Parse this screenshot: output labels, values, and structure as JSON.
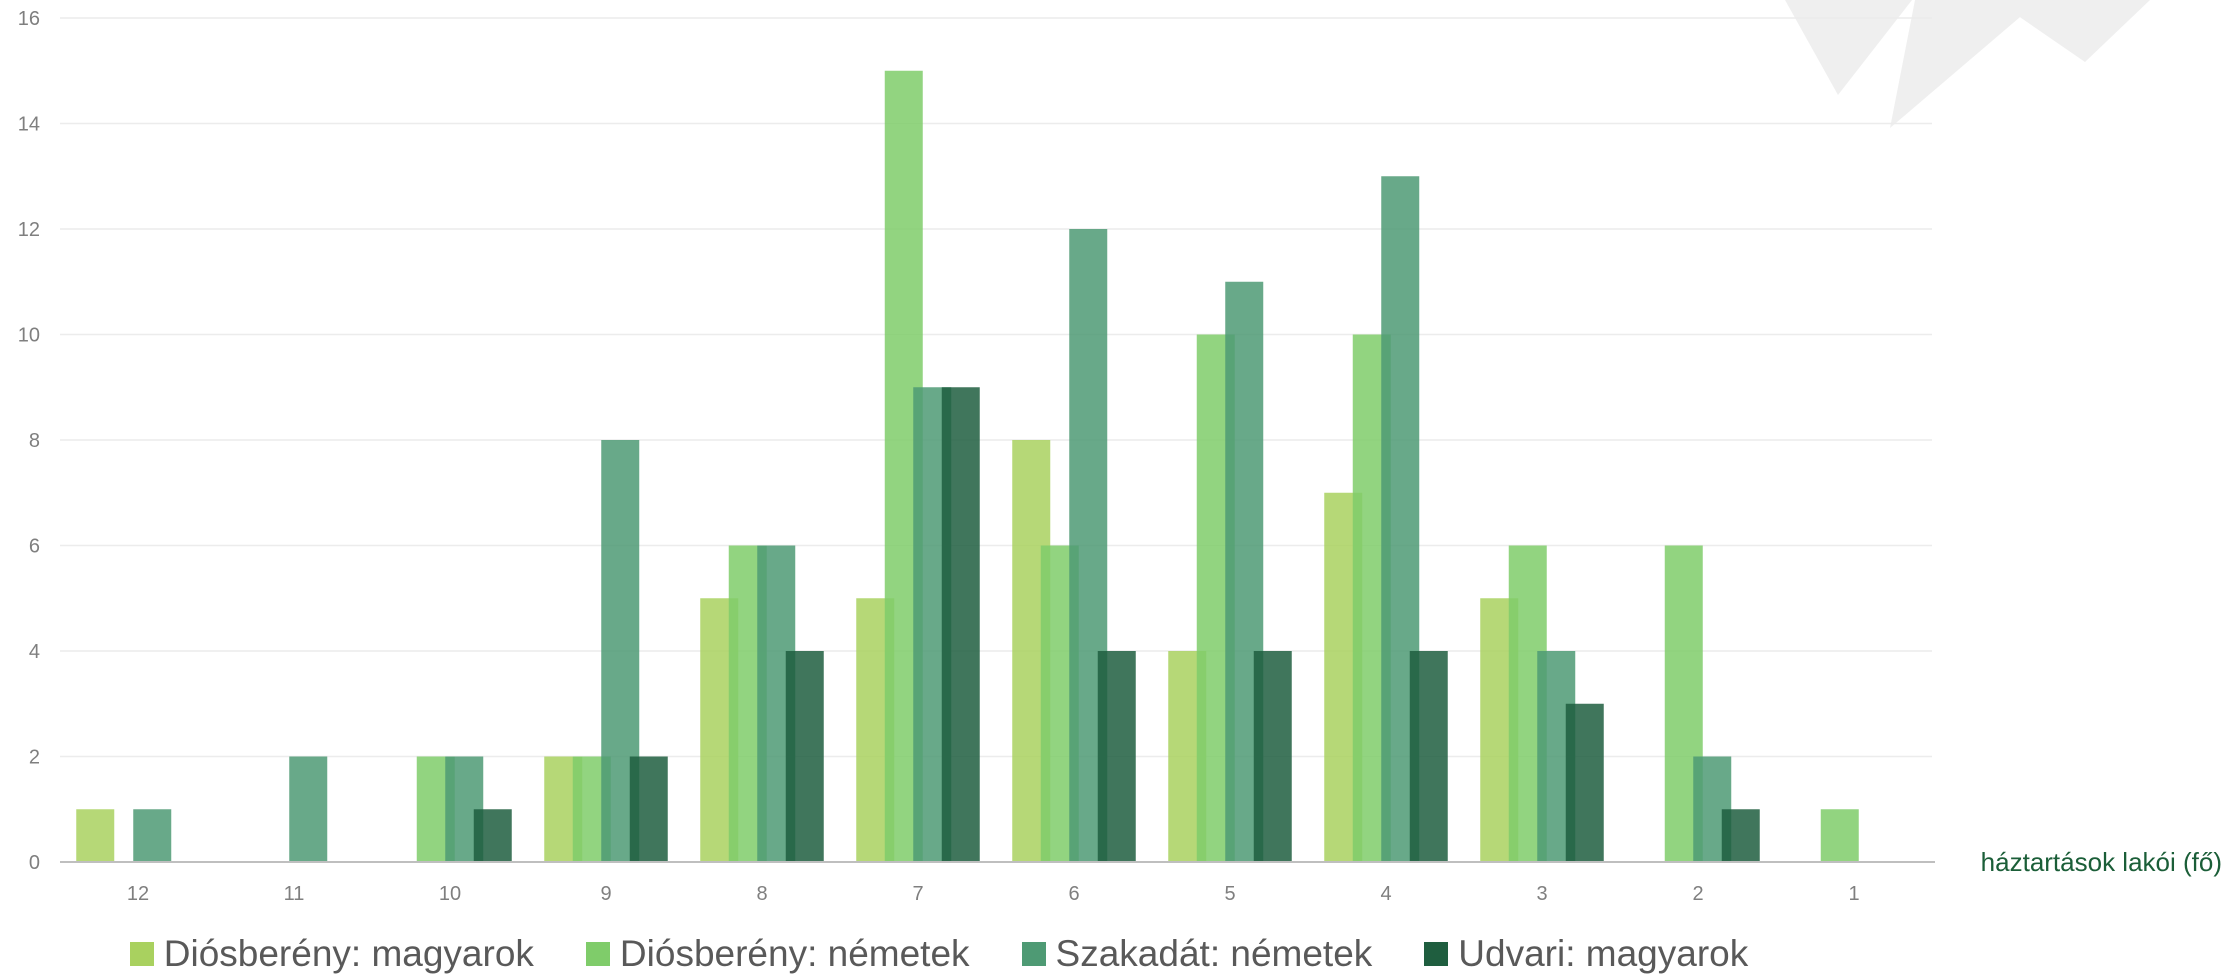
{
  "chart_data": {
    "type": "bar",
    "categories": [
      "12",
      "11",
      "10",
      "9",
      "8",
      "7",
      "6",
      "5",
      "4",
      "3",
      "2",
      "1"
    ],
    "series": [
      {
        "name": "Diósberény: magyarok",
        "color": "#a9d15f",
        "values": [
          1,
          0,
          0,
          2,
          5,
          5,
          8,
          4,
          7,
          5,
          0,
          0
        ]
      },
      {
        "name": "Diósberény: németek",
        "color": "#7fcc6a",
        "values": [
          0,
          0,
          2,
          2,
          6,
          15,
          6,
          10,
          10,
          6,
          6,
          1
        ]
      },
      {
        "name": "Szakadát: németek",
        "color": "#4e9a74",
        "values": [
          1,
          2,
          2,
          8,
          6,
          9,
          12,
          11,
          13,
          4,
          2,
          0
        ]
      },
      {
        "name": "Udvari: magyarok",
        "color": "#1f5e3f",
        "values": [
          0,
          0,
          1,
          2,
          4,
          9,
          4,
          4,
          4,
          3,
          1,
          0
        ]
      }
    ],
    "ylim": [
      0,
      16
    ],
    "yticks": [
      0,
      2,
      4,
      6,
      8,
      10,
      12,
      14,
      16
    ],
    "xlabel": "háztartások lakói (fő)",
    "ylabel": "",
    "title": "",
    "grid": true,
    "legend_position": "bottom"
  }
}
